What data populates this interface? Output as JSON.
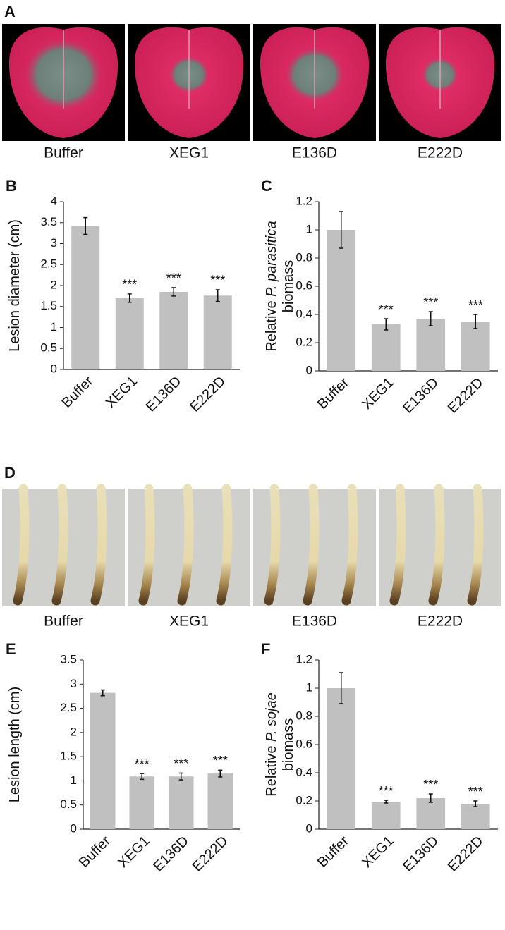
{
  "photo_panels": [
    {
      "panel": "A",
      "labels": [
        "Buffer",
        "XEG1",
        "E136D",
        "E222D"
      ]
    },
    {
      "panel": "D",
      "labels": [
        "Buffer",
        "XEG1",
        "E136D",
        "E222D"
      ]
    }
  ],
  "chart_data": [
    {
      "type": "bar",
      "panel": "B",
      "ylabel": [
        [
          {
            "text": "Lesion diameter (cm)",
            "italic": false
          }
        ]
      ],
      "categories": [
        "Buffer",
        "XEG1",
        "E136D",
        "E222D"
      ],
      "values": [
        3.42,
        1.7,
        1.85,
        1.76
      ],
      "errors": [
        0.2,
        0.1,
        0.1,
        0.14
      ],
      "significance": [
        null,
        "***",
        "***",
        "***"
      ],
      "color": "#c0c0c0",
      "ylim": [
        0,
        4
      ],
      "yticks": [
        0,
        0.5,
        1,
        1.5,
        2,
        2.5,
        3,
        3.5,
        4
      ]
    },
    {
      "type": "bar",
      "panel": "C",
      "ylabel": [
        [
          {
            "text": "Relative ",
            "italic": false
          },
          {
            "text": "P. parasitica",
            "italic": true
          }
        ],
        [
          {
            "text": "biomass",
            "italic": false
          }
        ]
      ],
      "categories": [
        "Buffer",
        "XEG1",
        "E136D",
        "E222D"
      ],
      "values": [
        1.0,
        0.33,
        0.37,
        0.35
      ],
      "errors": [
        0.13,
        0.04,
        0.05,
        0.05
      ],
      "significance": [
        null,
        "***",
        "***",
        "***"
      ],
      "color": "#c0c0c0",
      "ylim": [
        0,
        1.2
      ],
      "yticks": [
        0,
        0.2,
        0.4,
        0.6,
        0.8,
        1,
        1.2
      ]
    },
    {
      "type": "bar",
      "panel": "E",
      "ylabel": [
        [
          {
            "text": "Lesion length (cm)",
            "italic": false
          }
        ]
      ],
      "categories": [
        "Buffer",
        "XEG1",
        "E136D",
        "E222D"
      ],
      "values": [
        2.82,
        1.09,
        1.09,
        1.15
      ],
      "errors": [
        0.06,
        0.06,
        0.07,
        0.07
      ],
      "significance": [
        null,
        "***",
        "***",
        "***"
      ],
      "color": "#c0c0c0",
      "ylim": [
        0,
        3.5
      ],
      "yticks": [
        0,
        0.5,
        1,
        1.5,
        2,
        2.5,
        3,
        3.5
      ]
    },
    {
      "type": "bar",
      "panel": "F",
      "ylabel": [
        [
          {
            "text": "Relative ",
            "italic": false
          },
          {
            "text": "P. sojae",
            "italic": true
          }
        ],
        [
          {
            "text": "biomass",
            "italic": false
          }
        ]
      ],
      "categories": [
        "Buffer",
        "XEG1",
        "E136D",
        "E222D"
      ],
      "values": [
        1.0,
        0.195,
        0.22,
        0.18
      ],
      "errors": [
        0.11,
        0.01,
        0.03,
        0.02
      ],
      "significance": [
        null,
        "***",
        "***",
        "***"
      ],
      "color": "#c0c0c0",
      "ylim": [
        0,
        1.2
      ],
      "yticks": [
        0,
        0.2,
        0.4,
        0.6,
        0.8,
        1,
        1.2
      ]
    }
  ]
}
